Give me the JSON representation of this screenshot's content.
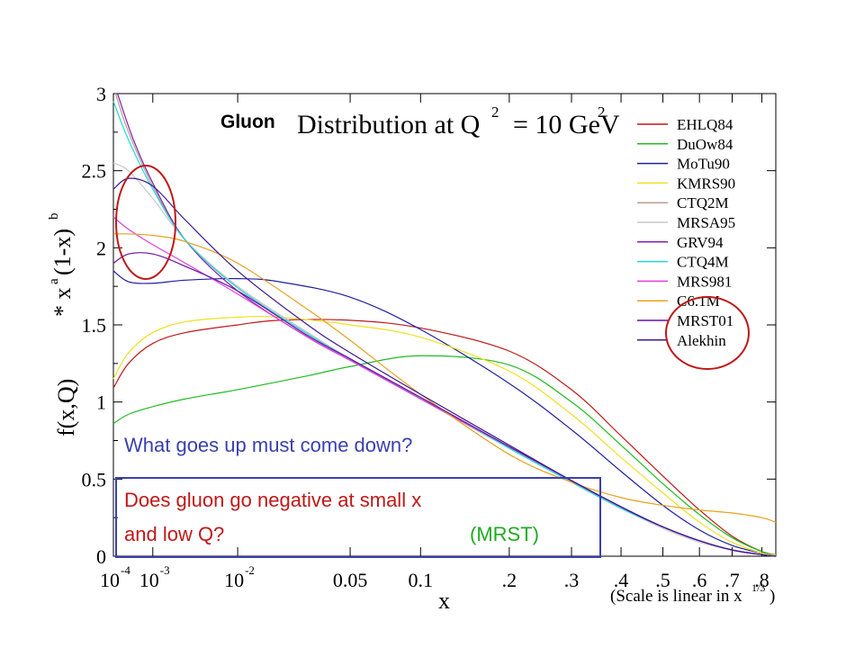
{
  "chart_data": {
    "type": "line",
    "title_prefix": "Gluon",
    "title": "Distribution at Q",
    "title_sup": "2",
    "title_suffix": "= 10 GeV",
    "title_suffix_sup": "2",
    "ylabel_main": "f(x,Q)",
    "ylabel_mult_1": "* x",
    "ylabel_mult_sup_a": "a",
    "ylabel_mult_2": "(1-x)",
    "ylabel_mult_sup_b": "b",
    "xlabel": "x",
    "scale_note": "(Scale is linear in x",
    "scale_note_sup": "1/3",
    "scale_note_end": ")",
    "ylim": [
      0,
      3
    ],
    "xlim": [
      0.0001,
      0.85
    ],
    "x_scale": "cube-root",
    "yticks": [
      "0",
      "0.5",
      "1",
      "1.5",
      "2",
      "2.5",
      "3"
    ],
    "xticks": [
      {
        "x": 0.0001,
        "base": "10",
        "exp": "-4"
      },
      {
        "x": 0.001,
        "base": "10",
        "exp": "-3"
      },
      {
        "x": 0.01,
        "base": "10",
        "exp": "-2"
      },
      {
        "x": 0.05,
        "label": "0.05"
      },
      {
        "x": 0.1,
        "label": "0.1"
      },
      {
        "x": 0.2,
        "label": ".2"
      },
      {
        "x": 0.3,
        "label": ".3"
      },
      {
        "x": 0.4,
        "label": ".4"
      },
      {
        "x": 0.5,
        "label": ".5"
      },
      {
        "x": 0.6,
        "label": ".6"
      },
      {
        "x": 0.7,
        "label": ".7"
      },
      {
        "x": 0.8,
        "label": ".8"
      }
    ],
    "legend_position": "top-right",
    "series": [
      {
        "name": "EHLQ84",
        "color": "#c01818",
        "points": [
          [
            0.0001,
            1.09
          ],
          [
            0.0003,
            1.25
          ],
          [
            0.001,
            1.38
          ],
          [
            0.003,
            1.45
          ],
          [
            0.01,
            1.5
          ],
          [
            0.02,
            1.53
          ],
          [
            0.05,
            1.53
          ],
          [
            0.1,
            1.48
          ],
          [
            0.2,
            1.33
          ],
          [
            0.3,
            1.08
          ],
          [
            0.4,
            0.78
          ],
          [
            0.5,
            0.52
          ],
          [
            0.6,
            0.3
          ],
          [
            0.7,
            0.13
          ],
          [
            0.8,
            0.03
          ],
          [
            0.85,
            0.01
          ]
        ]
      },
      {
        "name": "DuOw84",
        "color": "#22bb22",
        "points": [
          [
            0.0001,
            0.86
          ],
          [
            0.0003,
            0.92
          ],
          [
            0.001,
            0.97
          ],
          [
            0.003,
            1.02
          ],
          [
            0.01,
            1.08
          ],
          [
            0.03,
            1.17
          ],
          [
            0.05,
            1.23
          ],
          [
            0.1,
            1.3
          ],
          [
            0.2,
            1.24
          ],
          [
            0.3,
            1.0
          ],
          [
            0.4,
            0.72
          ],
          [
            0.5,
            0.47
          ],
          [
            0.6,
            0.27
          ],
          [
            0.7,
            0.12
          ],
          [
            0.8,
            0.03
          ],
          [
            0.85,
            0.01
          ]
        ]
      },
      {
        "name": "MoTu90",
        "color": "#2020a0",
        "points": [
          [
            0.0001,
            1.85
          ],
          [
            0.0003,
            1.78
          ],
          [
            0.001,
            1.77
          ],
          [
            0.003,
            1.79
          ],
          [
            0.01,
            1.8
          ],
          [
            0.02,
            1.78
          ],
          [
            0.05,
            1.68
          ],
          [
            0.1,
            1.47
          ],
          [
            0.2,
            1.12
          ],
          [
            0.3,
            0.82
          ],
          [
            0.4,
            0.55
          ],
          [
            0.5,
            0.33
          ],
          [
            0.6,
            0.17
          ],
          [
            0.7,
            0.07
          ],
          [
            0.8,
            0.02
          ],
          [
            0.85,
            0.01
          ]
        ]
      },
      {
        "name": "KMRS90",
        "color": "#f0e020",
        "points": [
          [
            0.0001,
            1.15
          ],
          [
            0.0003,
            1.32
          ],
          [
            0.001,
            1.45
          ],
          [
            0.003,
            1.52
          ],
          [
            0.01,
            1.55
          ],
          [
            0.02,
            1.55
          ],
          [
            0.05,
            1.5
          ],
          [
            0.1,
            1.42
          ],
          [
            0.2,
            1.2
          ],
          [
            0.3,
            0.92
          ],
          [
            0.4,
            0.64
          ],
          [
            0.5,
            0.41
          ],
          [
            0.6,
            0.22
          ],
          [
            0.7,
            0.09
          ],
          [
            0.8,
            0.02
          ],
          [
            0.85,
            0.01
          ]
        ]
      },
      {
        "name": "CTQ2M",
        "color": "#b8a090",
        "points": [
          [
            0.00012,
            3.0
          ],
          [
            0.0003,
            2.75
          ],
          [
            0.001,
            2.4
          ],
          [
            0.003,
            2.05
          ],
          [
            0.01,
            1.75
          ],
          [
            0.03,
            1.45
          ],
          [
            0.05,
            1.28
          ],
          [
            0.1,
            1.02
          ],
          [
            0.2,
            0.7
          ],
          [
            0.3,
            0.48
          ],
          [
            0.4,
            0.31
          ],
          [
            0.5,
            0.19
          ],
          [
            0.6,
            0.1
          ],
          [
            0.7,
            0.04
          ],
          [
            0.8,
            0.01
          ],
          [
            0.85,
            0.0
          ]
        ]
      },
      {
        "name": "MRSA95",
        "color": "#c8c8c8",
        "points": [
          [
            0.0001,
            2.55
          ],
          [
            0.0003,
            2.5
          ],
          [
            0.001,
            2.32
          ],
          [
            0.003,
            2.05
          ],
          [
            0.01,
            1.75
          ],
          [
            0.03,
            1.45
          ],
          [
            0.05,
            1.28
          ],
          [
            0.1,
            1.03
          ],
          [
            0.2,
            0.71
          ],
          [
            0.3,
            0.48
          ],
          [
            0.4,
            0.31
          ],
          [
            0.5,
            0.18
          ],
          [
            0.6,
            0.09
          ],
          [
            0.7,
            0.04
          ],
          [
            0.8,
            0.01
          ],
          [
            0.85,
            0.0
          ]
        ]
      },
      {
        "name": "GRV94",
        "color": "#8020b0",
        "points": [
          [
            0.00014,
            3.0
          ],
          [
            0.0004,
            2.7
          ],
          [
            0.001,
            2.42
          ],
          [
            0.003,
            2.05
          ],
          [
            0.01,
            1.72
          ],
          [
            0.03,
            1.42
          ],
          [
            0.05,
            1.27
          ],
          [
            0.1,
            1.02
          ],
          [
            0.2,
            0.71
          ],
          [
            0.3,
            0.49
          ],
          [
            0.4,
            0.32
          ],
          [
            0.5,
            0.19
          ],
          [
            0.6,
            0.1
          ],
          [
            0.7,
            0.04
          ],
          [
            0.8,
            0.01
          ],
          [
            0.85,
            0.0
          ]
        ]
      },
      {
        "name": "CTQ4M",
        "color": "#20d8d8",
        "points": [
          [
            0.0001,
            2.95
          ],
          [
            0.0003,
            2.7
          ],
          [
            0.001,
            2.38
          ],
          [
            0.003,
            2.05
          ],
          [
            0.01,
            1.74
          ],
          [
            0.03,
            1.44
          ],
          [
            0.05,
            1.28
          ],
          [
            0.1,
            1.03
          ],
          [
            0.2,
            0.7
          ],
          [
            0.3,
            0.48
          ],
          [
            0.4,
            0.31
          ],
          [
            0.5,
            0.19
          ],
          [
            0.6,
            0.1
          ],
          [
            0.7,
            0.04
          ],
          [
            0.8,
            0.01
          ],
          [
            0.85,
            0.0
          ]
        ]
      },
      {
        "name": "MRS981",
        "color": "#e040e0",
        "points": [
          [
            0.0001,
            2.2
          ],
          [
            0.0003,
            2.12
          ],
          [
            0.001,
            2.02
          ],
          [
            0.003,
            1.9
          ],
          [
            0.01,
            1.7
          ],
          [
            0.03,
            1.42
          ],
          [
            0.05,
            1.27
          ],
          [
            0.1,
            1.02
          ],
          [
            0.2,
            0.71
          ],
          [
            0.3,
            0.49
          ],
          [
            0.4,
            0.32
          ],
          [
            0.5,
            0.19
          ],
          [
            0.6,
            0.1
          ],
          [
            0.7,
            0.04
          ],
          [
            0.8,
            0.01
          ],
          [
            0.85,
            0.0
          ]
        ]
      },
      {
        "name": "C6.1M",
        "color": "#e8a020",
        "points": [
          [
            0.0001,
            2.09
          ],
          [
            0.0003,
            2.09
          ],
          [
            0.001,
            2.08
          ],
          [
            0.003,
            2.04
          ],
          [
            0.01,
            1.9
          ],
          [
            0.03,
            1.6
          ],
          [
            0.05,
            1.4
          ],
          [
            0.1,
            1.05
          ],
          [
            0.2,
            0.66
          ],
          [
            0.3,
            0.48
          ],
          [
            0.4,
            0.38
          ],
          [
            0.5,
            0.33
          ],
          [
            0.6,
            0.3
          ],
          [
            0.7,
            0.28
          ],
          [
            0.8,
            0.25
          ],
          [
            0.85,
            0.22
          ]
        ]
      },
      {
        "name": "MRST01",
        "color": "#6a10a0",
        "points": [
          [
            0.0001,
            1.9
          ],
          [
            0.0003,
            1.96
          ],
          [
            0.001,
            1.96
          ],
          [
            0.003,
            1.88
          ],
          [
            0.01,
            1.72
          ],
          [
            0.03,
            1.43
          ],
          [
            0.05,
            1.28
          ],
          [
            0.1,
            1.03
          ],
          [
            0.2,
            0.71
          ],
          [
            0.3,
            0.49
          ],
          [
            0.4,
            0.32
          ],
          [
            0.5,
            0.19
          ],
          [
            0.6,
            0.1
          ],
          [
            0.7,
            0.04
          ],
          [
            0.8,
            0.01
          ],
          [
            0.85,
            0.0
          ]
        ]
      },
      {
        "name": "Alekhin",
        "color": "#3a1890",
        "points": [
          [
            0.0001,
            2.38
          ],
          [
            0.0003,
            2.45
          ],
          [
            0.001,
            2.4
          ],
          [
            0.003,
            2.18
          ],
          [
            0.01,
            1.85
          ],
          [
            0.03,
            1.5
          ],
          [
            0.05,
            1.32
          ],
          [
            0.1,
            1.05
          ],
          [
            0.2,
            0.72
          ],
          [
            0.3,
            0.49
          ],
          [
            0.4,
            0.32
          ],
          [
            0.5,
            0.19
          ],
          [
            0.6,
            0.1
          ],
          [
            0.7,
            0.04
          ],
          [
            0.8,
            0.01
          ],
          [
            0.85,
            0.0
          ]
        ]
      }
    ]
  },
  "annotations": {
    "question_1": "What goes up must come down?",
    "question_2_line1": "Does gluon go negative at small x",
    "question_2_line2": "and low Q?",
    "question_2_tag": "(MRST)",
    "question_1_color": "#3a40b0",
    "question_2_color": "#c01818",
    "tag_color": "#22aa22",
    "circle_color": "#c01818"
  }
}
